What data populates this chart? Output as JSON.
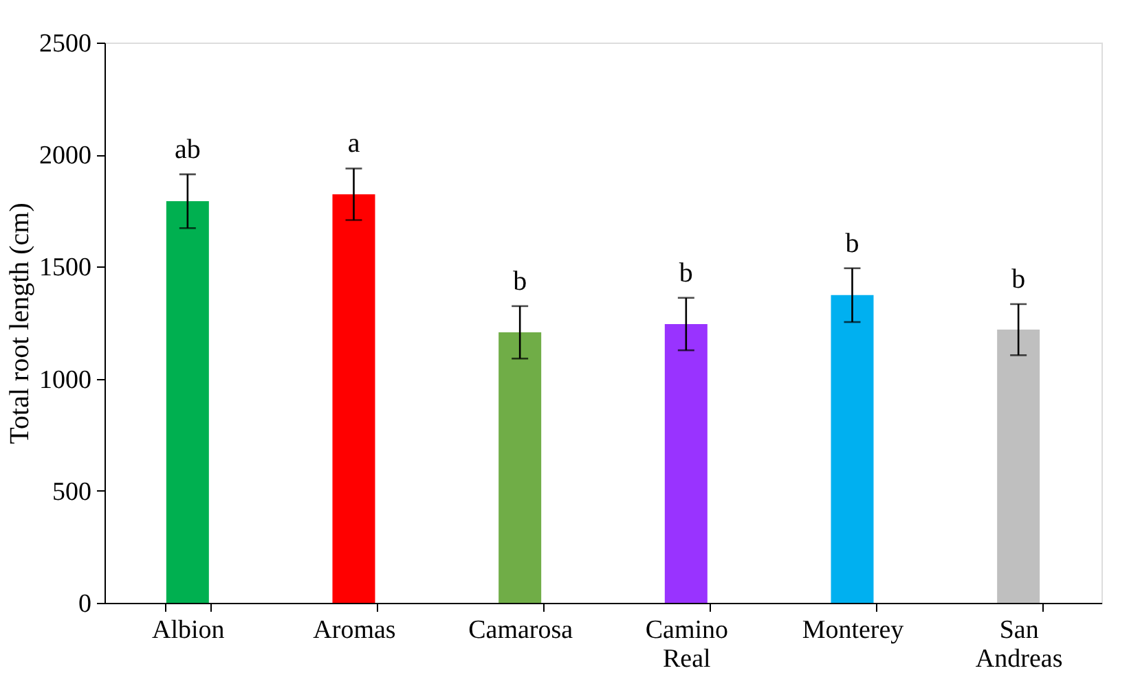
{
  "chart_data": {
    "type": "bar",
    "ylabel": "Total root length (cm)",
    "categories": [
      "Albion",
      "Aromas",
      "Camarosa",
      "Camino Real",
      "Monterey",
      "San Andreas"
    ],
    "values": [
      1792,
      1823,
      1207,
      1244,
      1373,
      1219
    ],
    "errors": [
      120,
      115,
      117,
      117,
      120,
      114
    ],
    "colors": [
      "#00b050",
      "#ff0000",
      "#70ad47",
      "#9933ff",
      "#00b0f0",
      "#bfbfbf"
    ],
    "ylim": [
      0,
      2500
    ],
    "yticks": [
      0,
      500,
      1000,
      1500,
      2000,
      2500
    ],
    "grid": false,
    "annotations": [
      "ab",
      "a",
      "b",
      "b",
      "b",
      "b"
    ]
  }
}
